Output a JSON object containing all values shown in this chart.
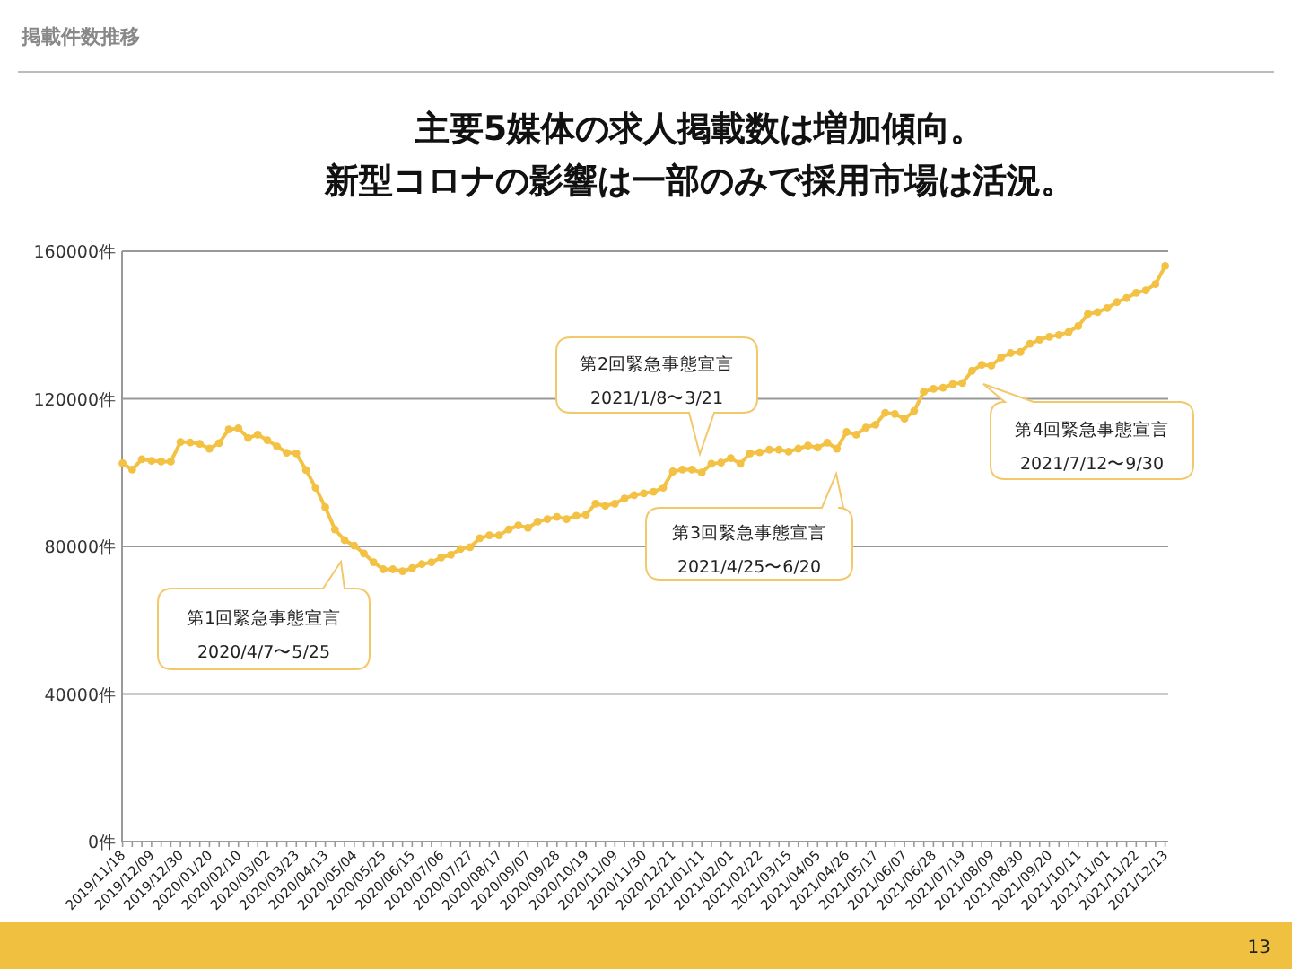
{
  "chart_data": {
    "type": "line",
    "title": "主要5媒体の求人掲載数は増加傾向。",
    "subtitle": "新型コロナの影響は一部のみで採用市場は活況。",
    "categories": [
      "2019/11/18",
      null,
      null,
      "2019/12/09",
      null,
      null,
      "2019/12/30",
      null,
      null,
      "2020/01/20",
      null,
      null,
      "2020/02/10",
      null,
      null,
      "2020/03/02",
      null,
      null,
      "2020/03/23",
      null,
      null,
      "2020/04/13",
      null,
      null,
      "2020/05/04",
      null,
      null,
      "2020/05/25",
      null,
      null,
      "2020/06/15",
      null,
      null,
      "2020/07/06",
      null,
      null,
      "2020/07/27",
      null,
      null,
      "2020/08/17",
      null,
      null,
      "2020/09/07",
      null,
      null,
      "2020/09/28",
      null,
      null,
      "2020/10/19",
      null,
      null,
      "2020/11/09",
      null,
      null,
      "2020/11/30",
      null,
      null,
      "2020/12/21",
      null,
      null,
      "2021/01/11",
      null,
      null,
      "2021/02/01",
      null,
      null,
      "2021/02/22",
      null,
      null,
      "2021/03/15",
      null,
      null,
      "2021/04/05",
      null,
      null,
      "2021/04/26",
      null,
      null,
      "2021/05/17",
      null,
      null,
      "2021/06/07",
      null,
      null,
      "2021/06/28",
      null,
      null,
      "2021/07/19",
      null,
      null,
      "2021/08/09",
      null,
      null,
      "2021/08/30",
      null,
      null,
      "2021/09/20",
      null,
      null,
      "2021/10/11",
      null,
      null,
      "2021/11/01",
      null,
      null,
      "2021/11/22",
      null,
      null,
      "2021/12/13"
    ],
    "values": [
      102500,
      100800,
      103600,
      103200,
      103000,
      103000,
      108300,
      108200,
      107800,
      106500,
      108000,
      111700,
      112000,
      109400,
      110300,
      108800,
      107100,
      105400,
      105200,
      100700,
      95900,
      90600,
      84600,
      81700,
      80200,
      78100,
      75700,
      73800,
      73800,
      73300,
      74100,
      75200,
      75700,
      77000,
      77700,
      79300,
      79800,
      82200,
      83000,
      83000,
      84600,
      85700,
      85000,
      86700,
      87400,
      88000,
      87400,
      88300,
      88600,
      91600,
      91000,
      91600,
      93000,
      93900,
      94400,
      94800,
      95900,
      100300,
      100800,
      100800,
      100000,
      102400,
      102700,
      103900,
      102400,
      105200,
      105500,
      106200,
      106200,
      105700,
      106500,
      107300,
      106800,
      108100,
      106500,
      111000,
      110300,
      112200,
      113000,
      116200,
      115900,
      114600,
      116700,
      121900,
      122700,
      123000,
      124000,
      124300,
      127600,
      129200,
      129000,
      131200,
      132400,
      132700,
      134900,
      136000,
      136800,
      137300,
      138100,
      139700,
      143000,
      143500,
      144600,
      146200,
      147300,
      148700,
      149400,
      151100,
      156000
    ],
    "color": "#f3c244",
    "marker": "circle",
    "grid": "y",
    "ylim": [
      0,
      160000
    ],
    "yticks": [
      {
        "value": 0,
        "label": "0件"
      },
      {
        "value": 40000,
        "label": "40000件"
      },
      {
        "value": 80000,
        "label": "80000件"
      },
      {
        "value": 120000,
        "label": "120000件"
      },
      {
        "value": 160000,
        "label": "160000件"
      }
    ],
    "annotations": [
      "掲載件数推移",
      "第1回緊急事態宣言\n2020/4/7〜5/25",
      "第2回緊急事態宣言\n2021/1/8〜3/21",
      "第3回緊急事態宣言\n2021/4/25〜6/20",
      "第4回緊急事態宣言\n2021/7/12〜9/30",
      "13"
    ]
  }
}
